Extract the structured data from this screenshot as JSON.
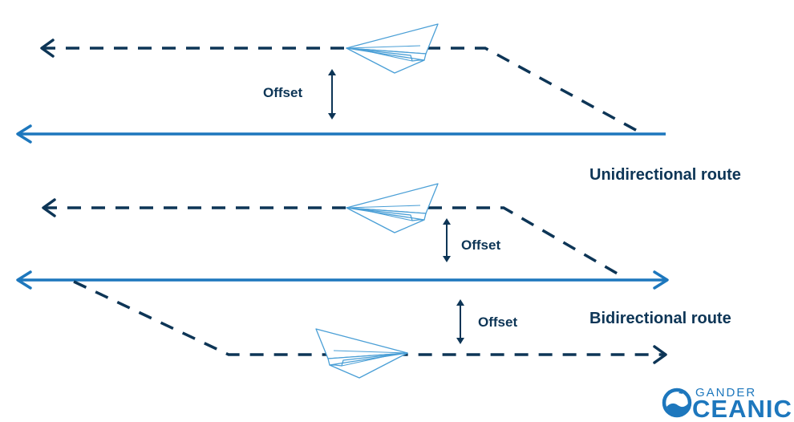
{
  "labels": {
    "offset_1": "Offset",
    "offset_2": "Offset",
    "offset_3": "Offset",
    "unidirectional": "Unidirectional route",
    "bidirectional": "Bidirectional route"
  },
  "logo": {
    "top": "GANDER",
    "main": "CEANIC"
  },
  "colors": {
    "route": "#1d77bd",
    "offset_track": "#0d3556",
    "text": "#0d3556",
    "plane": "#4a9fd6"
  }
}
